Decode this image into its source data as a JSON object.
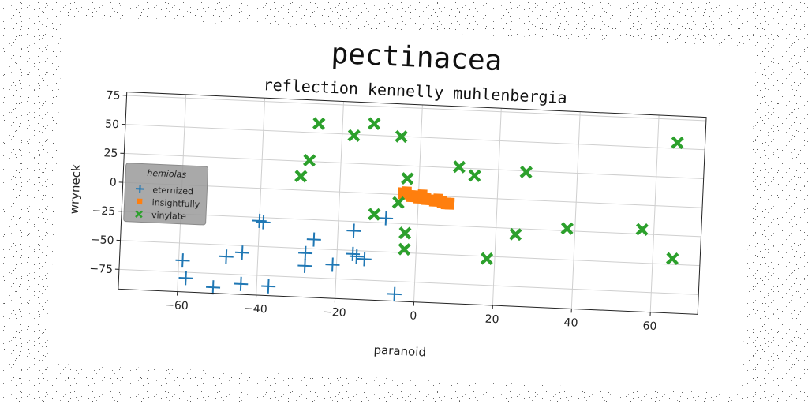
{
  "chart_data": {
    "type": "scatter",
    "title": "pectinacea",
    "subtitle": "reflection kennelly muhlenbergia",
    "xlabel": "paranoid",
    "ylabel": "wryneck",
    "xlim": [
      -75,
      72
    ],
    "ylim": [
      -92,
      78
    ],
    "xticks": [
      -60,
      -40,
      -20,
      0,
      20,
      40,
      60
    ],
    "yticks": [
      -75,
      -50,
      -25,
      0,
      25,
      50,
      75
    ],
    "xtick_labels": [
      "−60",
      "−40",
      "−20",
      "0",
      "20",
      "40",
      "60"
    ],
    "ytick_labels": [
      "−75",
      "−50",
      "−25",
      "0",
      "25",
      "50",
      "75"
    ],
    "grid": true,
    "legend": {
      "title": "hemiolas",
      "placement": "center-left"
    },
    "series": [
      {
        "name": "eternized",
        "marker": "plus",
        "color": "#1f77b4",
        "points": [
          [
            -59,
            -65
          ],
          [
            -58,
            -80
          ],
          [
            -51,
            -87
          ],
          [
            -48,
            -60
          ],
          [
            -44,
            -56
          ],
          [
            -44,
            -83
          ],
          [
            -40,
            -28
          ],
          [
            -39,
            -29
          ],
          [
            -37,
            -84
          ],
          [
            -28,
            -54
          ],
          [
            -28,
            -65
          ],
          [
            -26,
            -42
          ],
          [
            -21,
            -63
          ],
          [
            -16,
            -33
          ],
          [
            -16,
            -53
          ],
          [
            -15,
            -55
          ],
          [
            -13,
            -57
          ],
          [
            -8,
            -21
          ],
          [
            -5,
            -86
          ]
        ]
      },
      {
        "name": "insightfully",
        "marker": "square",
        "color": "#ff7f0e",
        "points": [
          [
            -4,
            2
          ],
          [
            -3,
            1
          ],
          [
            -2,
            0
          ],
          [
            -1,
            0
          ],
          [
            0,
            -1
          ],
          [
            1,
            -1
          ],
          [
            2,
            -2
          ],
          [
            3,
            -3
          ],
          [
            4,
            -3
          ],
          [
            5,
            -4
          ],
          [
            6,
            -4
          ],
          [
            7,
            -5
          ],
          [
            8,
            -5
          ],
          [
            -4,
            0
          ],
          [
            -2,
            -2
          ],
          [
            0,
            -3
          ],
          [
            2,
            -4
          ],
          [
            4,
            -5
          ],
          [
            6,
            -6
          ],
          [
            8,
            -7
          ],
          [
            -3,
            3
          ],
          [
            1,
            1
          ],
          [
            5,
            -2
          ],
          [
            7,
            -7
          ]
        ]
      },
      {
        "name": "vinylate",
        "marker": "x",
        "color": "#2ca02c",
        "points": [
          [
            -30,
            12
          ],
          [
            -28,
            26
          ],
          [
            -26,
            58
          ],
          [
            -17,
            49
          ],
          [
            -12,
            60
          ],
          [
            -11,
            -18
          ],
          [
            -5,
            50
          ],
          [
            -5,
            -7
          ],
          [
            -3,
            14
          ],
          [
            -3,
            -33
          ],
          [
            -3,
            -47
          ],
          [
            10,
            26
          ],
          [
            14,
            19
          ],
          [
            18,
            -52
          ],
          [
            25,
            -30
          ],
          [
            27,
            24
          ],
          [
            38,
            -23
          ],
          [
            57,
            -21
          ],
          [
            65,
            55
          ],
          [
            65,
            -45
          ]
        ]
      }
    ]
  }
}
